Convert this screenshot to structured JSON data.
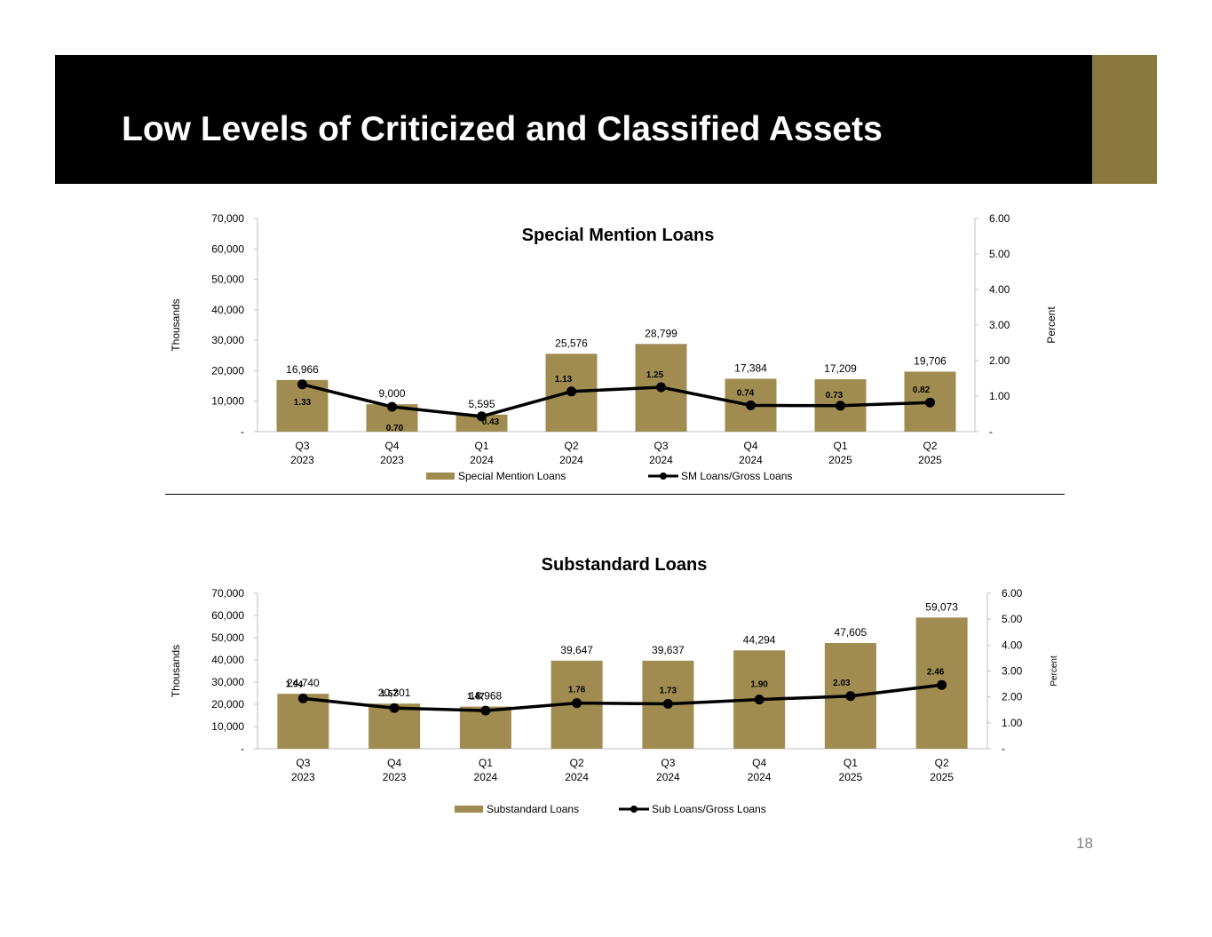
{
  "page": {
    "title": "Low Levels of Criticized and Classified Assets",
    "page_number": "18",
    "accent_color": "#8a783e",
    "bar_color": "#a08c50",
    "line_color": "#000000"
  },
  "chart_data": [
    {
      "type": "bar",
      "title": "Special Mention Loans",
      "categories": [
        [
          "Q3",
          "2023"
        ],
        [
          "Q4",
          "2023"
        ],
        [
          "Q1",
          "2024"
        ],
        [
          "Q2",
          "2024"
        ],
        [
          "Q3",
          "2024"
        ],
        [
          "Q4",
          "2024"
        ],
        [
          "Q1",
          "2025"
        ],
        [
          "Q2",
          "2025"
        ]
      ],
      "series": [
        {
          "name": "Special Mention Loans",
          "kind": "bar",
          "axis": "left",
          "values": [
            16966,
            9000,
            5595,
            25576,
            28799,
            17384,
            17209,
            19706
          ],
          "labels": [
            "16,966",
            "9,000",
            "5,595",
            "25,576",
            "28,799",
            "17,384",
            "17,209",
            "19,706"
          ]
        },
        {
          "name": "SM Loans/Gross Loans",
          "kind": "line",
          "axis": "right",
          "values": [
            1.33,
            0.7,
            0.43,
            1.13,
            1.25,
            0.74,
            0.73,
            0.82
          ],
          "labels": [
            "1.33",
            "0.70",
            "0.43",
            "1.13",
            "1.25",
            "0.74",
            "0.73",
            "0.82"
          ]
        }
      ],
      "ylabel": "Thousands",
      "y2label": "Percent",
      "ylim": [
        0,
        70000
      ],
      "y2lim": [
        0,
        6
      ],
      "yticks": [
        "-",
        "10,000",
        "20,000",
        "30,000",
        "40,000",
        "50,000",
        "60,000",
        "70,000"
      ],
      "y2ticks": [
        "-",
        "1.00",
        "2.00",
        "3.00",
        "4.00",
        "5.00",
        "6.00"
      ],
      "legend": "bottom"
    },
    {
      "type": "bar",
      "title": "Substandard Loans",
      "categories": [
        [
          "Q3",
          "2023"
        ],
        [
          "Q4",
          "2023"
        ],
        [
          "Q1",
          "2024"
        ],
        [
          "Q2",
          "2024"
        ],
        [
          "Q3",
          "2024"
        ],
        [
          "Q4",
          "2024"
        ],
        [
          "Q1",
          "2025"
        ],
        [
          "Q2",
          "2025"
        ]
      ],
      "series": [
        {
          "name": "Substandard Loans",
          "kind": "bar",
          "axis": "left",
          "values": [
            24740,
            20301,
            18968,
            39647,
            39637,
            44294,
            47605,
            59073
          ],
          "labels": [
            "24,740",
            "20,301",
            "18,968",
            "39,647",
            "39,637",
            "44,294",
            "47,605",
            "59,073"
          ]
        },
        {
          "name": "Sub Loans/Gross Loans",
          "kind": "line",
          "axis": "right",
          "values": [
            1.94,
            1.57,
            1.47,
            1.76,
            1.73,
            1.9,
            2.03,
            2.46
          ],
          "labels": [
            "1.94",
            "1.57",
            "1.47",
            "1.76",
            "1.73",
            "1.90",
            "2.03",
            "2.46"
          ]
        }
      ],
      "ylabel": "Thousands",
      "y2label": "Percent",
      "ylim": [
        0,
        70000
      ],
      "y2lim": [
        0,
        6
      ],
      "yticks": [
        "-",
        "10,000",
        "20,000",
        "30,000",
        "40,000",
        "50,000",
        "60,000",
        "70,000"
      ],
      "y2ticks": [
        "-",
        "1.00",
        "2.00",
        "3.00",
        "4.00",
        "5.00",
        "6.00"
      ],
      "legend": "bottom"
    }
  ]
}
